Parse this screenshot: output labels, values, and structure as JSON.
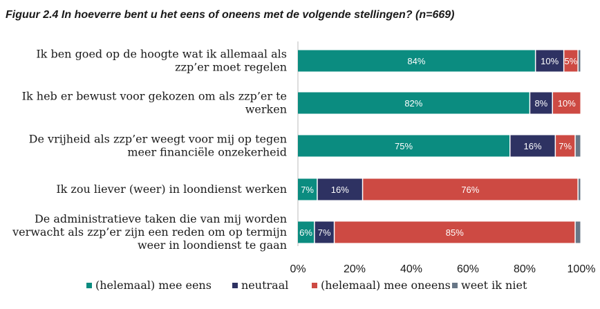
{
  "chart_data": {
    "type": "bar",
    "orientation": "horizontal",
    "stacked": true,
    "title": "Figuur 2.4 In hoeverre bent u het eens of oneens met de volgende stellingen? (n=669)",
    "categories": [
      [
        "Ik ben goed op de hoogte wat ik allemaal als",
        "zzp’er moet regelen"
      ],
      [
        "Ik heb er bewust voor gekozen om als zzp’er te",
        "werken"
      ],
      [
        "De vrijheid als zzp’er weegt voor mij op tegen",
        "meer financiële onzekerheid"
      ],
      [
        "Ik zou liever (weer) in loondienst werken"
      ],
      [
        "De administratieve taken die van mij worden",
        "verwacht als zzp’er zijn een reden om op termijn",
        "weer in loondienst te gaan"
      ]
    ],
    "series": [
      {
        "name": "(helemaal) mee eens",
        "color": "#0b8c80",
        "values": [
          84,
          82,
          75,
          7,
          6
        ]
      },
      {
        "name": "neutraal",
        "color": "#2e3262",
        "values": [
          10,
          8,
          16,
          16,
          7
        ]
      },
      {
        "name": "(helemaal) mee oneens",
        "color": "#cd4a43",
        "values": [
          5,
          10,
          7,
          76,
          85
        ]
      },
      {
        "name": "weet ik niet",
        "color": "#687787",
        "values": [
          1,
          0,
          2,
          1,
          2
        ]
      }
    ],
    "data_labels": [
      [
        "84%",
        "10%",
        "5%",
        ""
      ],
      [
        "82%",
        "8%",
        "10%",
        ""
      ],
      [
        "75%",
        "16%",
        "7%",
        ""
      ],
      [
        "7%",
        "16%",
        "76%",
        ""
      ],
      [
        "6%",
        "7%",
        "85%",
        ""
      ]
    ],
    "xticks": [
      "0%",
      "20%",
      "40%",
      "60%",
      "80%",
      "100%"
    ],
    "xlim": [
      0,
      100
    ],
    "grid": false,
    "legend_position": "bottom"
  }
}
